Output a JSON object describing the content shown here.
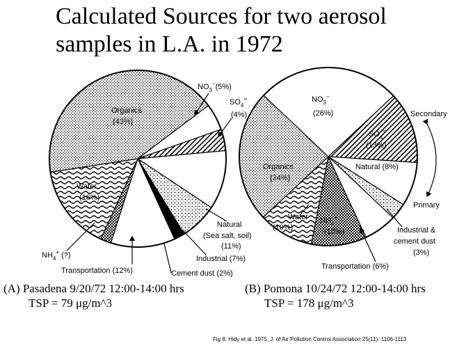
{
  "title": {
    "line1": "Calculated Sources for two aerosol",
    "line2": "samples in L.A. in 1972"
  },
  "chart_data": [
    {
      "type": "pie",
      "caption": "(A) Pasadena 9/20/72 12:00-14:00 hrs",
      "tsp": "TSP = 79 μg/m^3",
      "slices": [
        {
          "label": "NO3− (5%)",
          "value": 5,
          "pattern": "white"
        },
        {
          "label": "SO4= (4%)",
          "value": 4,
          "pattern": "hatch"
        },
        {
          "label": "Natural (Sea salt, soil) (11%)",
          "value": 11,
          "pattern": "white"
        },
        {
          "label": "Industrial (7%)",
          "value": 7,
          "pattern": "dots"
        },
        {
          "label": "Cement dust (2%)",
          "value": 2,
          "pattern": "black"
        },
        {
          "label": "Transportation (12%)",
          "value": 12,
          "pattern": "white"
        },
        {
          "label": "NH4+ (?)",
          "value": 2,
          "pattern": "checker"
        },
        {
          "label": "Water (16%)",
          "value": 16,
          "pattern": "waves"
        },
        {
          "label": "Organics (43%)",
          "value": 43,
          "pattern": "stipple"
        }
      ],
      "labels": [
        {
          "text": "Organics",
          "sub": "(43%)"
        },
        {
          "text": "NO",
          "sub": "(5%)"
        },
        {
          "text": "SO",
          "sub": "(4%)"
        },
        {
          "text": "Water",
          "sub": "(16%)"
        },
        {
          "text": "Natural",
          "sub": "(Sea salt, soil)",
          "sub2": "(11%)"
        },
        {
          "text": "Industrial (7%)"
        },
        {
          "text": "Cement dust (2%)"
        },
        {
          "text": "Transportation (12%)"
        },
        {
          "text": "NH",
          "sub": "(?)"
        }
      ]
    },
    {
      "type": "pie",
      "caption": "(B) Pomona 10/24/72 12:00-14:00 hrs",
      "tsp": "TSP = 178 μg/m^3",
      "slices": [
        {
          "label": "SO4= (13%)",
          "value": 13,
          "pattern": "hatch"
        },
        {
          "label": "Natural (8%)",
          "value": 8,
          "pattern": "white"
        },
        {
          "label": "Industrial & cement dust (3%)",
          "value": 3,
          "pattern": "dots"
        },
        {
          "label": "Transportation (6%)",
          "value": 6,
          "pattern": "white"
        },
        {
          "label": "NH4+ (10%)",
          "value": 10,
          "pattern": "checker"
        },
        {
          "label": "Water (10%)",
          "value": 10,
          "pattern": "waves"
        },
        {
          "label": "Organics (24%)",
          "value": 24,
          "pattern": "stipple"
        },
        {
          "label": "NO3− (26%)",
          "value": 26,
          "pattern": "white"
        }
      ],
      "labels": [
        {
          "text": "NO",
          "sub": "(26%)"
        },
        {
          "text": "SO",
          "sub": "(13%)"
        },
        {
          "text": "Secondary"
        },
        {
          "text": "Natural (8%)"
        },
        {
          "text": "Organics",
          "sub": "(24%)"
        },
        {
          "text": "Primary"
        },
        {
          "text": "Industrial &",
          "sub": "cement dust",
          "sub2": "(3%)"
        },
        {
          "text": "Water",
          "sub": "(10%)"
        },
        {
          "text": "NH",
          "sub": "(10%)"
        },
        {
          "text": "Transportation (6%)"
        }
      ]
    }
  ],
  "source": "Fig 8: Hidy et al. 1975, J. of Air Pollution Control Association 25(11): 1106-1113"
}
